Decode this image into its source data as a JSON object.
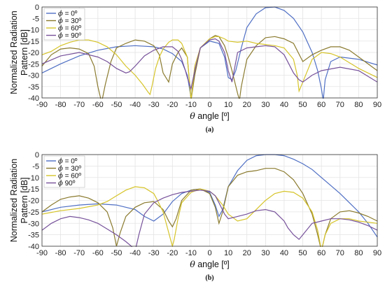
{
  "chart_data": [
    {
      "type": "line",
      "caption": "(a)",
      "xlabel_symbol": "θ",
      "xlabel": "angle [º]",
      "ylabel": [
        "Normalized Radiation",
        "Pattern [dB]"
      ],
      "xlim": [
        -90,
        90
      ],
      "ylim": [
        -40,
        0
      ],
      "xticks": [
        -90,
        -80,
        -70,
        -60,
        -50,
        -40,
        -30,
        -20,
        -10,
        0,
        10,
        20,
        30,
        40,
        50,
        60,
        70,
        80,
        90
      ],
      "yticks": [
        0,
        -5,
        -10,
        -15,
        -20,
        -25,
        -30,
        -35,
        -40
      ],
      "grid": true,
      "legend_position": "top-left",
      "legend_symbol": "ϕ",
      "series": [
        {
          "name": "= 0º",
          "color": "#4f6fc4",
          "x": [
            -90,
            -80,
            -70,
            -60,
            -50,
            -40,
            -30,
            -25,
            -20,
            -15,
            -12,
            -10,
            -8,
            -5,
            0,
            5,
            8,
            10,
            12,
            14,
            17,
            20,
            25,
            30,
            35,
            40,
            45,
            50,
            55,
            58,
            60,
            61,
            62,
            65,
            70,
            80,
            90
          ],
          "y": [
            -29,
            -25,
            -21.5,
            -19,
            -17.5,
            -17,
            -17.5,
            -18.5,
            -20.5,
            -24,
            -30,
            -40,
            -28,
            -18,
            -15,
            -16,
            -22,
            -31,
            -32,
            -28,
            -18,
            -9,
            -3,
            -0.3,
            0,
            -1.5,
            -5,
            -11,
            -20,
            -28,
            -36,
            -41,
            -32,
            -24,
            -22,
            -23,
            -25.5
          ]
        },
        {
          "name": "= 30º",
          "color": "#8a7a2e",
          "x": [
            -90,
            -85,
            -80,
            -75,
            -70,
            -65,
            -62,
            -60,
            -58,
            -56,
            -53,
            -50,
            -45,
            -40,
            -35,
            -30,
            -27,
            -25,
            -22,
            -20,
            -17,
            -15,
            -12,
            -10,
            -8,
            -5,
            0,
            3,
            5,
            8,
            10,
            12,
            15,
            16,
            17,
            20,
            25,
            30,
            35,
            40,
            45,
            50,
            55,
            60,
            65,
            70,
            75,
            80,
            90
          ],
          "y": [
            -26,
            -21,
            -18.5,
            -18,
            -18.5,
            -20.5,
            -26,
            -35,
            -42,
            -34,
            -24,
            -18,
            -16,
            -14.5,
            -15,
            -17,
            -21,
            -29,
            -33,
            -25,
            -20,
            -18,
            -22,
            -41,
            -30,
            -18,
            -14,
            -12.5,
            -13,
            -17,
            -22,
            -28,
            -38,
            -41,
            -35,
            -23,
            -17,
            -13.5,
            -13,
            -14,
            -16,
            -24,
            -21,
            -19,
            -17.5,
            -17.5,
            -19,
            -22,
            -28
          ]
        },
        {
          "name": "= 60º",
          "color": "#d6c42a",
          "x": [
            -90,
            -85,
            -80,
            -75,
            -70,
            -65,
            -60,
            -55,
            -50,
            -45,
            -40,
            -36,
            -33,
            -32,
            -31,
            -29,
            -27,
            -25,
            -22,
            -20,
            -17,
            -15,
            -12,
            -10,
            -8,
            -5,
            0,
            3,
            5,
            8,
            10,
            15,
            20,
            25,
            30,
            35,
            40,
            45,
            47,
            48,
            50,
            55,
            60,
            65,
            70,
            80,
            90
          ],
          "y": [
            -21,
            -19.5,
            -17,
            -15.5,
            -14.5,
            -14.5,
            -15.5,
            -17.5,
            -21,
            -26,
            -30,
            -34,
            -37.5,
            -38.5,
            -35,
            -27,
            -22,
            -18.5,
            -15.5,
            -14.5,
            -14.5,
            -16,
            -22,
            -41,
            -26,
            -18,
            -14,
            -13,
            -13,
            -14,
            -15,
            -15.5,
            -15,
            -16,
            -16.5,
            -17,
            -18,
            -23,
            -30,
            -37,
            -33,
            -23,
            -20,
            -20.5,
            -22,
            -27,
            -31
          ]
        },
        {
          "name": "= 90º",
          "color": "#76519a",
          "x": [
            -90,
            -80,
            -70,
            -60,
            -55,
            -50,
            -45,
            -43,
            -40,
            -35,
            -30,
            -25,
            -20,
            -17,
            -15,
            -13,
            -12,
            -10,
            -8,
            -5,
            0,
            3,
            5,
            8,
            10,
            12,
            15,
            20,
            25,
            30,
            35,
            40,
            45,
            48,
            50,
            55,
            60,
            70,
            80,
            90
          ],
          "y": [
            -25,
            -21.5,
            -20,
            -22,
            -24,
            -27,
            -29,
            -28.5,
            -26,
            -21.5,
            -19,
            -17.5,
            -17.5,
            -19.5,
            -23,
            -28,
            -31,
            -36,
            -28,
            -18,
            -14.5,
            -14,
            -15,
            -20,
            -28,
            -33,
            -20,
            -18,
            -17.5,
            -17,
            -17.5,
            -21,
            -29,
            -32,
            -33,
            -30,
            -28,
            -26.5,
            -28,
            -33
          ]
        }
      ]
    },
    {
      "type": "line",
      "caption": "(b)",
      "xlabel_symbol": "θ",
      "xlabel": "angle [º]",
      "ylabel": [
        "Normalized Radiation",
        "Pattern [dB]"
      ],
      "xlim": [
        -90,
        90
      ],
      "ylim": [
        -40,
        0
      ],
      "xticks": [
        -90,
        -80,
        -70,
        -60,
        -50,
        -40,
        -30,
        -20,
        -10,
        0,
        10,
        20,
        30,
        40,
        50,
        60,
        70,
        80,
        90
      ],
      "yticks": [
        0,
        -5,
        -10,
        -15,
        -20,
        -25,
        -30,
        -35,
        -40
      ],
      "grid": true,
      "legend_position": "top-left",
      "legend_symbol": "ϕ",
      "series": [
        {
          "name": "= 0º",
          "color": "#4f6fc4",
          "x": [
            -90,
            -80,
            -70,
            -60,
            -50,
            -40,
            -35,
            -30,
            -25,
            -20,
            -15,
            -10,
            -5,
            0,
            3,
            5,
            7,
            10,
            15,
            20,
            25,
            30,
            35,
            40,
            45,
            50,
            55,
            60,
            65,
            70,
            75,
            80,
            85,
            90
          ],
          "y": [
            -25,
            -23,
            -22,
            -21.5,
            -22,
            -24,
            -27,
            -29,
            -26,
            -20.5,
            -17,
            -15.5,
            -15,
            -16.5,
            -22,
            -27,
            -24,
            -14,
            -7,
            -2.5,
            -0.5,
            0,
            0,
            -0.5,
            -2,
            -4,
            -6.5,
            -10,
            -13.5,
            -17,
            -21,
            -25,
            -30,
            -36
          ]
        },
        {
          "name": "= 30º",
          "color": "#8a7a2e",
          "x": [
            -90,
            -85,
            -80,
            -75,
            -70,
            -65,
            -60,
            -55,
            -52,
            -50,
            -48,
            -45,
            -40,
            -35,
            -30,
            -25,
            -22,
            -20,
            -18,
            -15,
            -10,
            -5,
            0,
            3,
            5,
            7,
            10,
            15,
            20,
            25,
            30,
            35,
            40,
            45,
            50,
            55,
            58,
            60,
            62,
            65,
            70,
            75,
            80,
            85,
            90
          ],
          "y": [
            -25,
            -22,
            -19.5,
            -18.5,
            -18,
            -19,
            -21,
            -25,
            -32,
            -40,
            -34,
            -27,
            -23,
            -21,
            -20.5,
            -24,
            -29,
            -31.5,
            -28,
            -20,
            -15.5,
            -15,
            -17,
            -23,
            -30,
            -25,
            -14,
            -9,
            -7.5,
            -7,
            -6,
            -6,
            -7.5,
            -11,
            -17,
            -26,
            -35,
            -42,
            -35,
            -28,
            -25,
            -24.5,
            -25.5,
            -27,
            -29
          ]
        },
        {
          "name": "= 60º",
          "color": "#d6c42a",
          "x": [
            -90,
            -80,
            -70,
            -60,
            -55,
            -50,
            -45,
            -40,
            -35,
            -30,
            -28,
            -25,
            -23,
            -21,
            -20,
            -19,
            -17,
            -15,
            -10,
            -5,
            0,
            3,
            5,
            7,
            10,
            15,
            20,
            25,
            30,
            35,
            40,
            45,
            50,
            55,
            58,
            60,
            62,
            65,
            70,
            75,
            80,
            90
          ],
          "y": [
            -26,
            -24.5,
            -23.5,
            -22,
            -20.5,
            -18,
            -15.5,
            -14,
            -14.5,
            -17,
            -20,
            -25,
            -31,
            -37,
            -40,
            -37,
            -28,
            -21,
            -16.5,
            -15,
            -16,
            -18,
            -20,
            -22,
            -26,
            -29,
            -28,
            -24,
            -20,
            -17,
            -16,
            -16.5,
            -19,
            -25,
            -33,
            -42,
            -35,
            -30,
            -28,
            -28,
            -29,
            -30
          ]
        },
        {
          "name": "90º",
          "color": "#76519a",
          "x": [
            -90,
            -85,
            -80,
            -75,
            -70,
            -65,
            -60,
            -55,
            -50,
            -45,
            -42,
            -40,
            -38,
            -35,
            -30,
            -25,
            -20,
            -15,
            -10,
            -5,
            0,
            3,
            5,
            8,
            10,
            15,
            20,
            25,
            30,
            35,
            40,
            42,
            45,
            48,
            50,
            55,
            60,
            65,
            70,
            75,
            80,
            85,
            90
          ],
          "y": [
            -33,
            -30,
            -28,
            -27,
            -27.5,
            -28.5,
            -30,
            -32.5,
            -35,
            -38,
            -40,
            -42,
            -35,
            -26,
            -21,
            -19,
            -17.5,
            -16.5,
            -16,
            -15.5,
            -16,
            -18,
            -21,
            -26,
            -28,
            -27,
            -26,
            -24.5,
            -24,
            -25,
            -29,
            -32,
            -35,
            -37,
            -35,
            -30,
            -29,
            -28,
            -28,
            -28.5,
            -29.5,
            -31,
            -33
          ]
        }
      ]
    }
  ]
}
